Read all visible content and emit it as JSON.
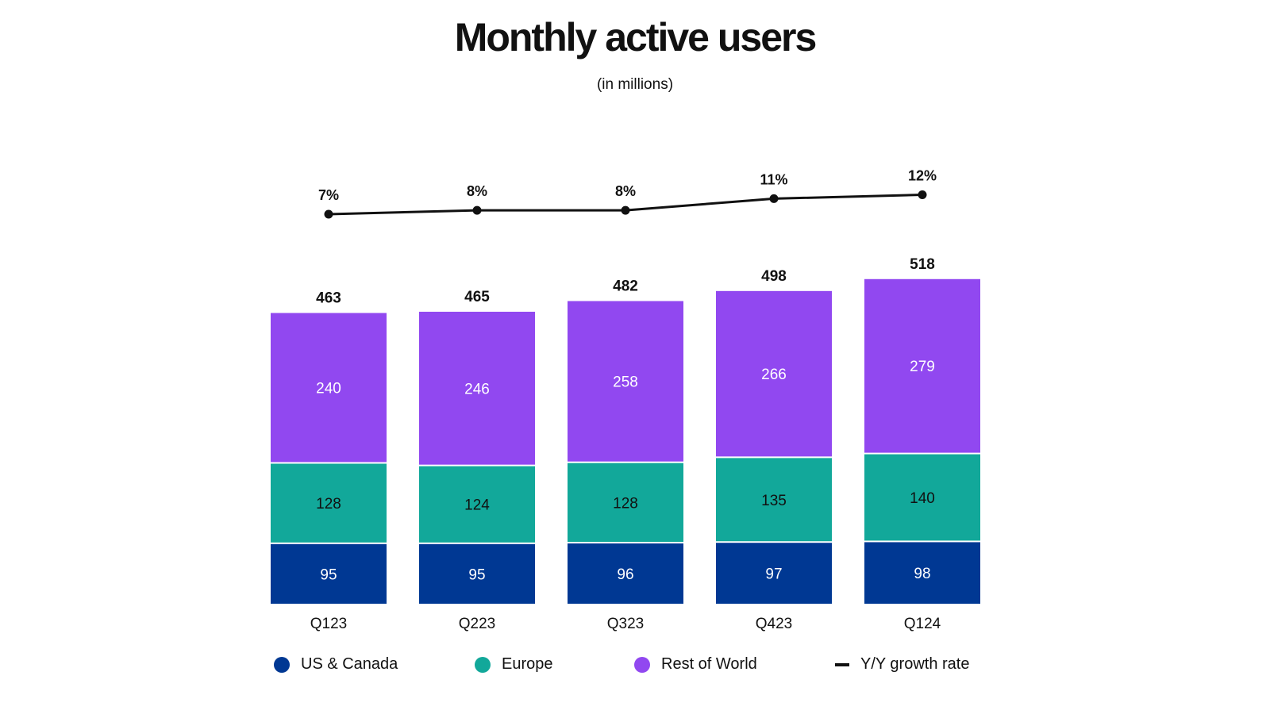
{
  "chart_data": {
    "type": "bar",
    "stacked": true,
    "title": "Monthly active users",
    "subtitle": "(in millions)",
    "categories": [
      "Q123",
      "Q223",
      "Q323",
      "Q423",
      "Q124"
    ],
    "series": [
      {
        "name": "US & Canada",
        "color": "#003893",
        "values": [
          95,
          95,
          96,
          97,
          98
        ]
      },
      {
        "name": "Europe",
        "color": "#12A89A",
        "values": [
          128,
          124,
          128,
          135,
          140
        ]
      },
      {
        "name": "Rest of World",
        "color": "#9148F0",
        "values": [
          240,
          246,
          258,
          266,
          279
        ]
      }
    ],
    "totals": [
      463,
      465,
      482,
      498,
      518
    ],
    "growth": {
      "name": "Y/Y growth rate",
      "type": "line",
      "color": "#111111",
      "values": [
        7,
        8,
        8,
        11,
        12
      ],
      "labels": [
        "7%",
        "8%",
        "8%",
        "11%",
        "12%"
      ]
    },
    "ylim": [
      0,
      520
    ],
    "grid": false,
    "legend_position": "bottom"
  }
}
